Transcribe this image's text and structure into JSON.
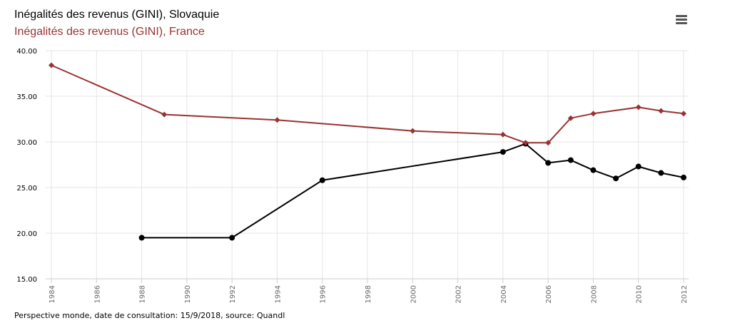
{
  "titles": [
    "Inégalités des revenus (GINI), Slovaquie",
    "Inégalités des revenus (GINI), France"
  ],
  "credits": "Perspective monde, date de consultation: 15/9/2018, source: Quandl",
  "menu": {
    "icon": "hamburger-menu-icon"
  },
  "chart_data": {
    "type": "line",
    "title": "",
    "xlabel": "",
    "ylabel": "",
    "xlim": [
      1984,
      2012
    ],
    "ylim": [
      15,
      40
    ],
    "x_ticks": [
      "1984",
      "1986",
      "1988",
      "1990",
      "1992",
      "1994",
      "1996",
      "1998",
      "2000",
      "2002",
      "2004",
      "2006",
      "2008",
      "2010",
      "2012"
    ],
    "y_ticks": [
      "15.00",
      "20.00",
      "25.00",
      "30.00",
      "35.00",
      "40.00"
    ],
    "grid": true,
    "legend": "top-left",
    "series": [
      {
        "name": "Inégalités des revenus (GINI), Slovaquie",
        "color": "#000000",
        "marker": "circle",
        "points": [
          [
            1988,
            19.5
          ],
          [
            1992,
            19.5
          ],
          [
            1996,
            25.8
          ],
          [
            2004,
            28.9
          ],
          [
            2005,
            29.8
          ],
          [
            2006,
            27.7
          ],
          [
            2007,
            28.0
          ],
          [
            2008,
            26.9
          ],
          [
            2009,
            26.0
          ],
          [
            2010,
            27.3
          ],
          [
            2011,
            26.6
          ],
          [
            2012,
            26.1
          ]
        ]
      },
      {
        "name": "Inégalités des revenus (GINI), France",
        "color": "#993333",
        "marker": "diamond",
        "points": [
          [
            1984,
            38.4
          ],
          [
            1989,
            33.0
          ],
          [
            1994,
            32.4
          ],
          [
            2000,
            31.2
          ],
          [
            2004,
            30.8
          ],
          [
            2005,
            29.9
          ],
          [
            2006,
            29.9
          ],
          [
            2007,
            32.6
          ],
          [
            2008,
            33.1
          ],
          [
            2010,
            33.8
          ],
          [
            2011,
            33.4
          ],
          [
            2012,
            33.1
          ]
        ]
      }
    ]
  }
}
